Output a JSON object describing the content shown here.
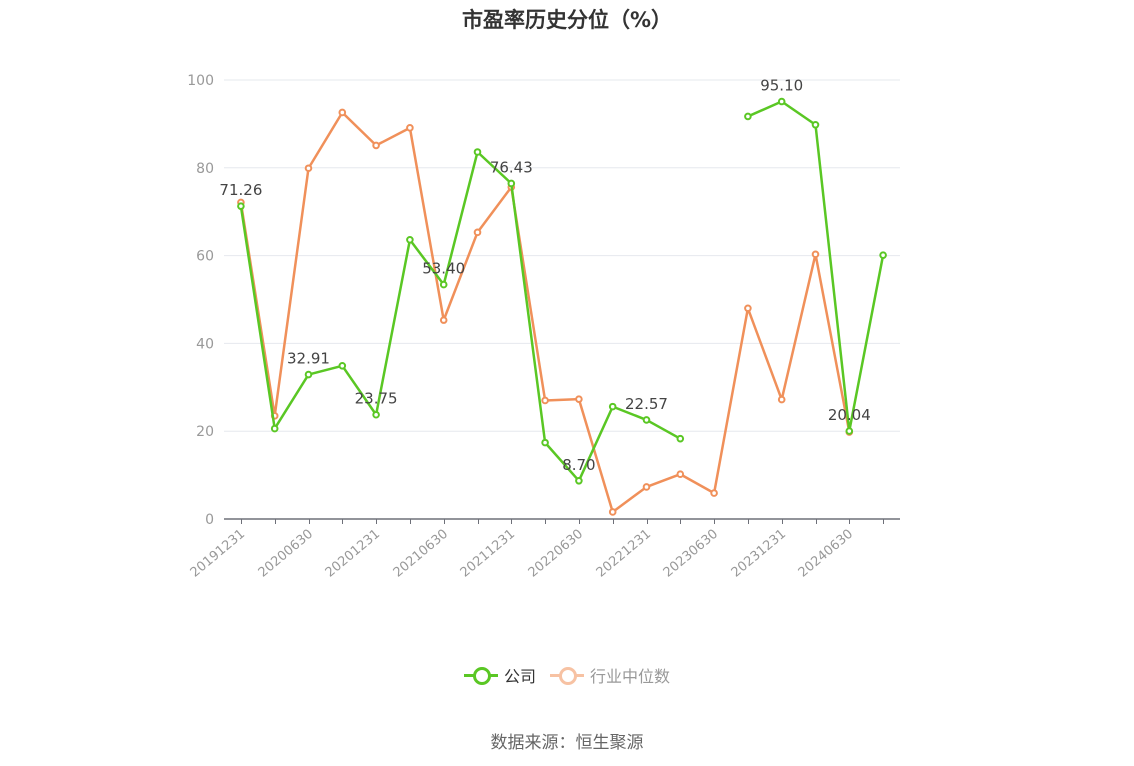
{
  "chart_data": {
    "type": "line",
    "title": "市盈率历史分位（%）",
    "ylim": [
      0,
      100
    ],
    "yticks": [
      0,
      20,
      40,
      60,
      80,
      100
    ],
    "grid": true,
    "legend_position": "bottom",
    "x_tick_labels": [
      "20191231",
      "20200630",
      "20201231",
      "20210630",
      "20211231",
      "20220630",
      "20221231",
      "20230630",
      "20231231",
      "20240630"
    ],
    "x": [
      "20191231",
      "20200331",
      "20200630",
      "20200930",
      "20201231",
      "20210331",
      "20210630",
      "20210930",
      "20211231",
      "20220331",
      "20220630",
      "20220930",
      "20221231",
      "20230331",
      "20230630",
      "20230930",
      "20231231",
      "20240331",
      "20240630",
      "20240930"
    ],
    "series": [
      {
        "name": "公司",
        "color": "#5ac724",
        "values": [
          71.26,
          20.6,
          32.91,
          34.9,
          23.75,
          63.6,
          53.4,
          83.6,
          76.43,
          17.4,
          8.7,
          25.6,
          22.57,
          18.3,
          null,
          91.7,
          95.1,
          89.8,
          20.04,
          60.1
        ],
        "labels": [
          71.26,
          null,
          32.91,
          null,
          23.75,
          null,
          53.4,
          null,
          76.43,
          null,
          8.7,
          null,
          22.57,
          null,
          null,
          null,
          95.1,
          null,
          20.04,
          null
        ]
      },
      {
        "name": "行业中位数",
        "color": "#f0905a",
        "values": [
          72.1,
          23.5,
          79.9,
          92.6,
          85.1,
          89.1,
          45.3,
          65.3,
          75.6,
          27.0,
          27.3,
          1.6,
          7.3,
          10.2,
          5.9,
          48.0,
          27.2,
          60.3,
          19.8,
          null
        ],
        "labels": []
      }
    ]
  },
  "legend": {
    "company": "公司",
    "industry": "行业中位数"
  },
  "source": "数据来源：恒生聚源"
}
